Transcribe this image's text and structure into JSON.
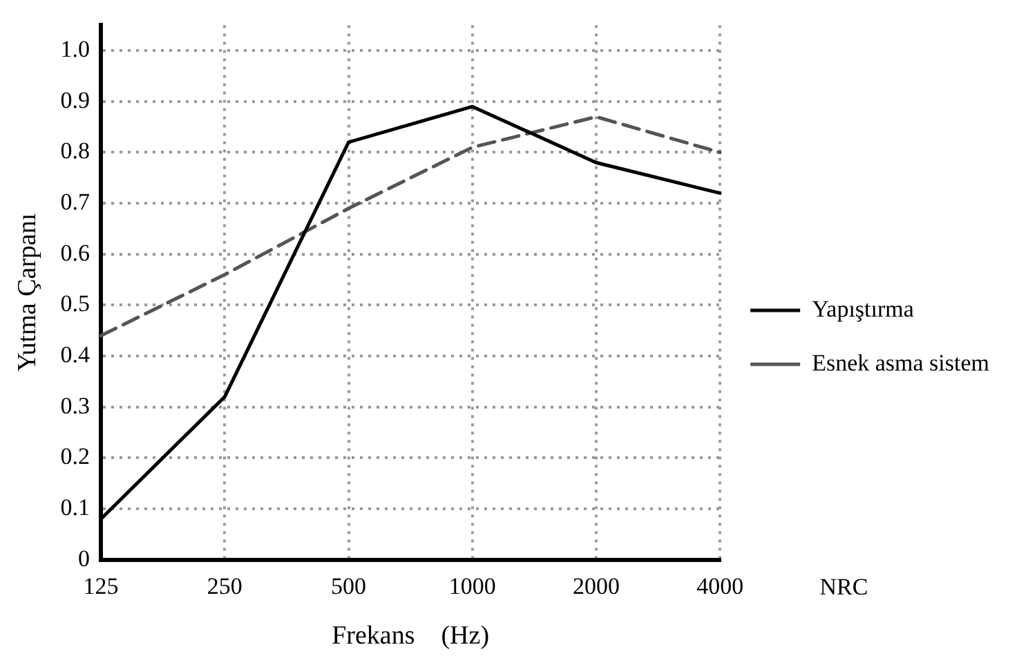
{
  "chart_data": {
    "type": "line",
    "xlabel": "Frekans    (Hz)",
    "ylabel": "Yutma Çarpanı",
    "categories": [
      "125",
      "250",
      "500",
      "1000",
      "2000",
      "4000"
    ],
    "ylim": [
      0,
      1.05
    ],
    "yticks": [
      0,
      0.1,
      0.2,
      0.3,
      0.4,
      0.5,
      0.6,
      0.7,
      0.8,
      0.9,
      {
        "value": 1,
        "label": "1.0"
      }
    ],
    "grid": true,
    "legend": "right",
    "marker": "none",
    "annotations": [
      "NRC"
    ],
    "series": [
      {
        "name": "Yapıştırma",
        "color": "#000000",
        "line_style": "solid",
        "values": [
          0.08,
          0.32,
          0.82,
          0.89,
          0.78,
          0.72
        ]
      },
      {
        "name": "Esnek asma sistem",
        "color": "#555555",
        "line_style": "dashed",
        "values": [
          0.44,
          0.56,
          0.69,
          0.81,
          0.87,
          0.8
        ]
      }
    ]
  }
}
